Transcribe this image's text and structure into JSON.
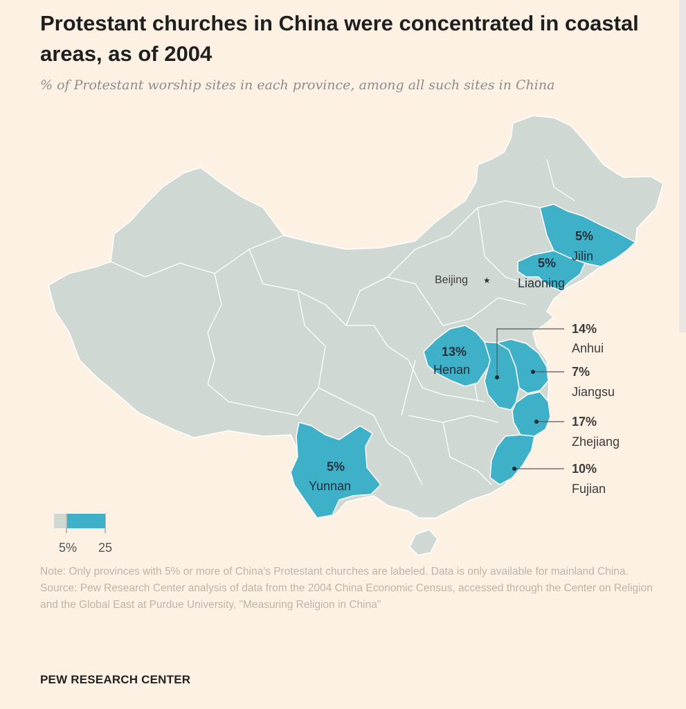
{
  "title": "Protestant churches in China were concentrated in coastal areas, as of 2004",
  "subtitle": "% of Protestant worship sites in each province, among all such sites in China",
  "capital": "Beijing",
  "provinces": [
    {
      "name": "Jilin",
      "value_label": "5%",
      "value": 5
    },
    {
      "name": "Liaoning",
      "value_label": "5%",
      "value": 5
    },
    {
      "name": "Henan",
      "value_label": "13%",
      "value": 13
    },
    {
      "name": "Anhui",
      "value_label": "14%",
      "value": 14
    },
    {
      "name": "Jiangsu",
      "value_label": "7%",
      "value": 7
    },
    {
      "name": "Zhejiang",
      "value_label": "17%",
      "value": 17
    },
    {
      "name": "Fujian",
      "value_label": "10%",
      "value": 10
    },
    {
      "name": "Yunnan",
      "value_label": "5%",
      "value": 5
    }
  ],
  "legend": {
    "min_label": "5%",
    "max_label": "25"
  },
  "colors": {
    "background": "#fdf1e3",
    "base_province": "#cfd8d3",
    "highlight_province": "#3eb1c8",
    "border": "#ffffff"
  },
  "note": "Note: Only provinces with 5% or more of China's Protestant churches are labeled. Data is only available for mainland China.",
  "source": "Source: Pew Research Center analysis of data from the 2004 China Economic Census, accessed through the Center on Religion and the Global East at Purdue University, \"Measuring Religion in China\"",
  "brand": "PEW RESEARCH CENTER"
}
